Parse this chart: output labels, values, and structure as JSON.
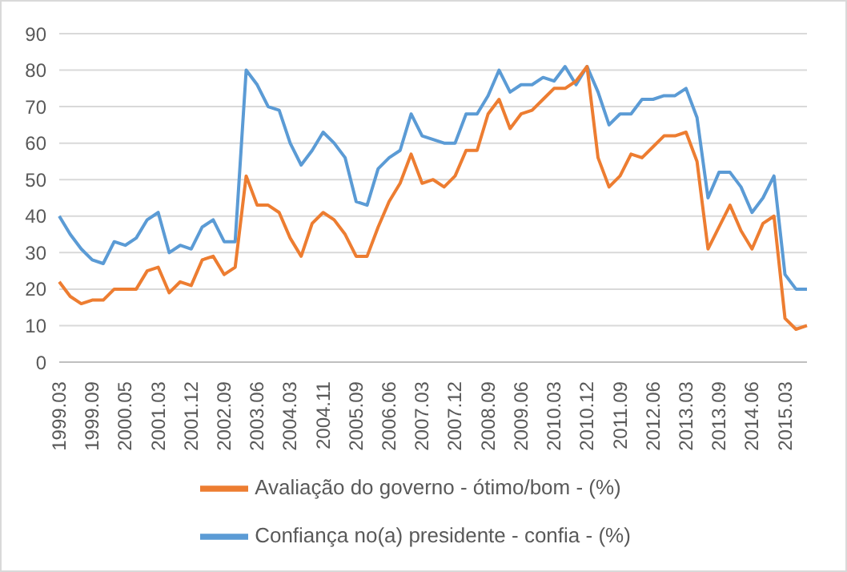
{
  "chart_data": {
    "type": "line",
    "categories": [
      "1999.03",
      null,
      null,
      "1999.09",
      null,
      null,
      "2000.05",
      null,
      null,
      "2001.03",
      null,
      null,
      "2001.12",
      null,
      null,
      "2002.09",
      null,
      null,
      "2003.06",
      null,
      null,
      "2004.03",
      null,
      null,
      "2004.11",
      null,
      null,
      "2005.09",
      null,
      null,
      "2006.06",
      null,
      null,
      "2007.03",
      null,
      null,
      "2007.12",
      null,
      null,
      "2008.09",
      null,
      null,
      "2009.06",
      null,
      null,
      "2010.03",
      null,
      null,
      "2010.12",
      null,
      null,
      "2011.09",
      null,
      null,
      "2012.06",
      null,
      null,
      "2013.03",
      null,
      null,
      "2013.09",
      null,
      null,
      "2014.06",
      null,
      null,
      "2015.03",
      null,
      null
    ],
    "series": [
      {
        "name": "Confiança no(a) presidente - confia - (%)",
        "color": "#5b9bd5",
        "values": [
          40,
          35,
          31,
          28,
          27,
          33,
          32,
          34,
          39,
          41,
          30,
          32,
          31,
          37,
          39,
          33,
          33,
          80,
          76,
          70,
          69,
          60,
          54,
          58,
          63,
          60,
          56,
          44,
          43,
          53,
          56,
          58,
          68,
          62,
          61,
          60,
          60,
          68,
          68,
          73,
          80,
          74,
          76,
          76,
          78,
          77,
          81,
          76,
          81,
          74,
          65,
          68,
          68,
          72,
          72,
          73,
          73,
          75,
          67,
          45,
          52,
          52,
          48,
          41,
          45,
          51,
          24,
          20,
          20
        ]
      },
      {
        "name": "Avaliação do governo - ótimo/bom - (%)",
        "color": "#ed7d31",
        "values": [
          22,
          18,
          16,
          17,
          17,
          20,
          20,
          20,
          25,
          26,
          19,
          22,
          21,
          28,
          29,
          24,
          26,
          51,
          43,
          43,
          41,
          34,
          29,
          38,
          41,
          39,
          35,
          29,
          29,
          37,
          44,
          49,
          57,
          49,
          50,
          48,
          51,
          58,
          58,
          68,
          72,
          64,
          68,
          69,
          72,
          75,
          75,
          77,
          81,
          56,
          48,
          51,
          57,
          56,
          59,
          62,
          62,
          63,
          55,
          31,
          37,
          43,
          36,
          31,
          38,
          40,
          12,
          9,
          10
        ]
      }
    ],
    "ylim": [
      0,
      90
    ],
    "yticks": [
      0,
      10,
      20,
      30,
      40,
      50,
      60,
      70,
      80,
      90
    ],
    "grid": "y",
    "legend": "bottom",
    "marker": "none",
    "line_style": "solid"
  }
}
